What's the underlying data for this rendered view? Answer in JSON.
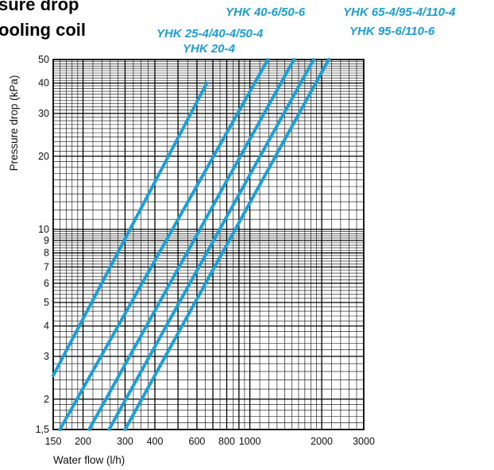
{
  "page": {
    "title_line1": "sure drop",
    "title_line2": "ooling coil"
  },
  "colors": {
    "series": "#1a9fd8",
    "grid": "#000000",
    "background": "#ffffff"
  },
  "chart_data": {
    "type": "line",
    "xscale": "log",
    "yscale": "log",
    "xlim": [
      150,
      3000
    ],
    "ylim": [
      1.5,
      50
    ],
    "grid": true,
    "xlabel": "Water flow (l/h)",
    "ylabel": "Pressure drop (kPa)",
    "xticks": [
      150,
      200,
      300,
      400,
      600,
      800,
      1000,
      2000,
      3000
    ],
    "xtick_labels": [
      "150",
      "200",
      "300",
      "400",
      "600",
      "800",
      "1000",
      "2000",
      "3000"
    ],
    "yticks": [
      1.5,
      2,
      3,
      4,
      5,
      6,
      7,
      8,
      9,
      10,
      20,
      30,
      40,
      50
    ],
    "ytick_labels": [
      "1,5",
      "2",
      "3",
      "4",
      "5",
      "6",
      "7",
      "8",
      "9",
      "10",
      "20",
      "30",
      "40",
      "50"
    ],
    "series": [
      {
        "name": "YHK 20-4",
        "x": [
          150,
          660
        ],
        "y": [
          2.5,
          40
        ]
      },
      {
        "name": "YHK 25-4/40-4/50-4",
        "x": [
          160,
          1190
        ],
        "y": [
          1.5,
          50
        ]
      },
      {
        "name": "YHK 40-6/50-6",
        "x": [
          212,
          1530
        ],
        "y": [
          1.5,
          50
        ]
      },
      {
        "name": "YHK 65-4/95-4/110-4",
        "x": [
          257,
          1850
        ],
        "y": [
          1.5,
          50
        ]
      },
      {
        "name": "YHK 95-6/110-6",
        "x": [
          300,
          2140
        ],
        "y": [
          1.5,
          50
        ]
      }
    ]
  }
}
